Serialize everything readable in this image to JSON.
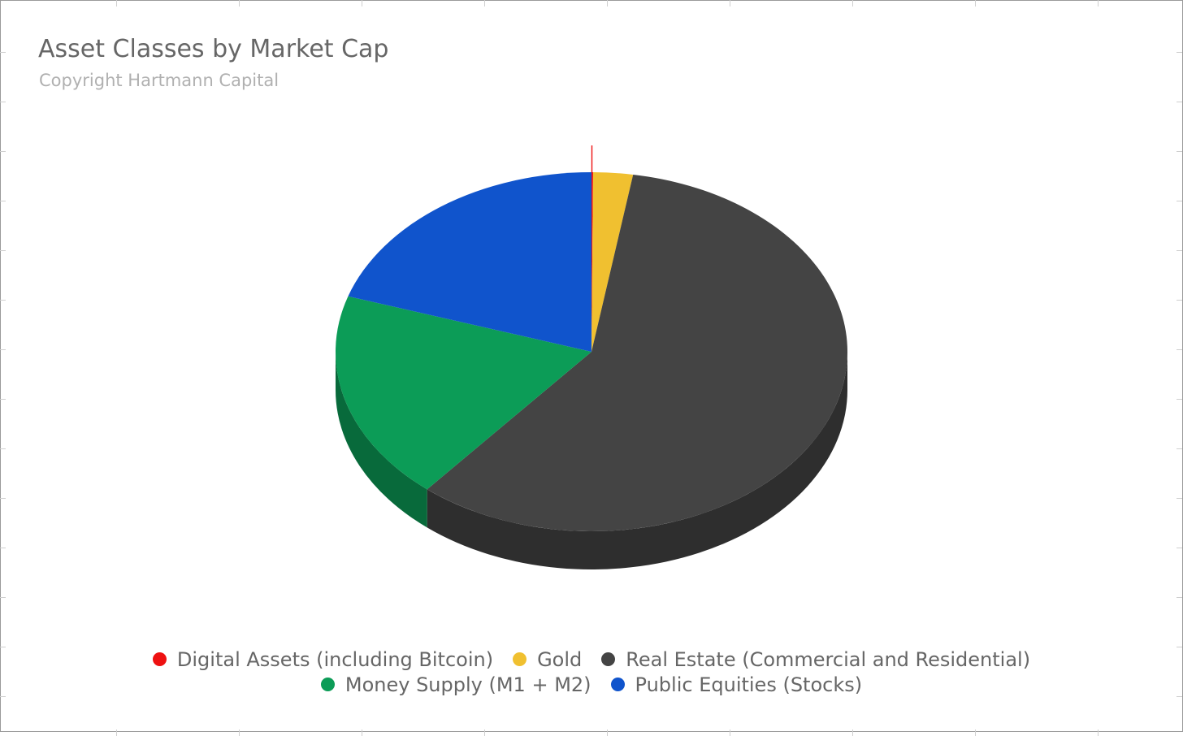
{
  "chart_data": {
    "type": "pie",
    "title": "Asset Classes by Market Cap",
    "subtitle": "Copyright Hartmann Capital",
    "three_d": true,
    "legend_position": "bottom",
    "slices": [
      {
        "label": "Digital Assets (including Bitcoin)",
        "value": 0.1,
        "color": "#ee1111"
      },
      {
        "label": "Gold",
        "value": 2.5,
        "color": "#f0c030"
      },
      {
        "label": "Real Estate (Commercial and Residential)",
        "value": 58.5,
        "color": "#444444"
      },
      {
        "label": "Money Supply (M1 + M2)",
        "value": 18.9,
        "color": "#0c9c57"
      },
      {
        "label": "Public Equities (Stocks)",
        "value": 20.0,
        "color": "#1054cc"
      }
    ]
  }
}
